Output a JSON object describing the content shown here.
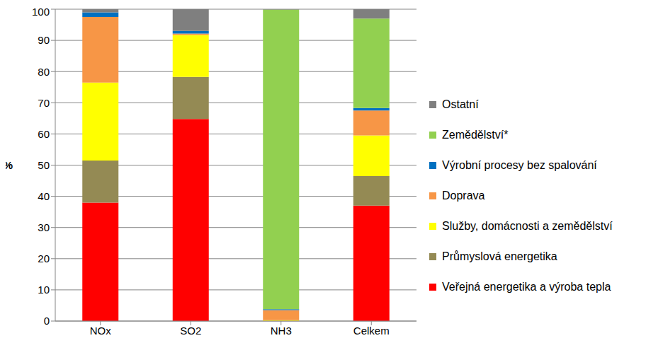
{
  "chart_data": {
    "type": "bar",
    "stacked": true,
    "grid": true,
    "legend": "right",
    "y_label": "%",
    "categories": [
      "NOx",
      "SO2",
      "NH3",
      "Celkem"
    ],
    "ylim": [
      0,
      100
    ],
    "yticks": [
      0,
      10,
      20,
      30,
      40,
      50,
      60,
      70,
      80,
      90,
      100
    ],
    "series": [
      {
        "name": "Veřejná energetika a výroba tepla",
        "color": "#ff0000",
        "values": [
          38,
          64.8,
          0,
          37
        ]
      },
      {
        "name": "Průmyslová energetika",
        "color": "#948a54",
        "values": [
          13.5,
          13.5,
          0,
          9.5
        ]
      },
      {
        "name": "Služby, domácnosti a zemědělství",
        "color": "#ffff00",
        "values": [
          25,
          13.4,
          0.3,
          13
        ]
      },
      {
        "name": "Doprava",
        "color": "#f79646",
        "values": [
          21,
          0.5,
          3.2,
          8
        ]
      },
      {
        "name": "Výrobní procesy bez spalování",
        "color": "#0070c0",
        "values": [
          1.5,
          0.8,
          0.3,
          0.8
        ]
      },
      {
        "name": "Zemědělství*",
        "color": "#92d050",
        "values": [
          0,
          0,
          96.1,
          28.7
        ]
      },
      {
        "name": "Ostatní",
        "color": "#7f7f7f",
        "values": [
          1,
          7,
          0.1,
          3
        ]
      }
    ]
  }
}
